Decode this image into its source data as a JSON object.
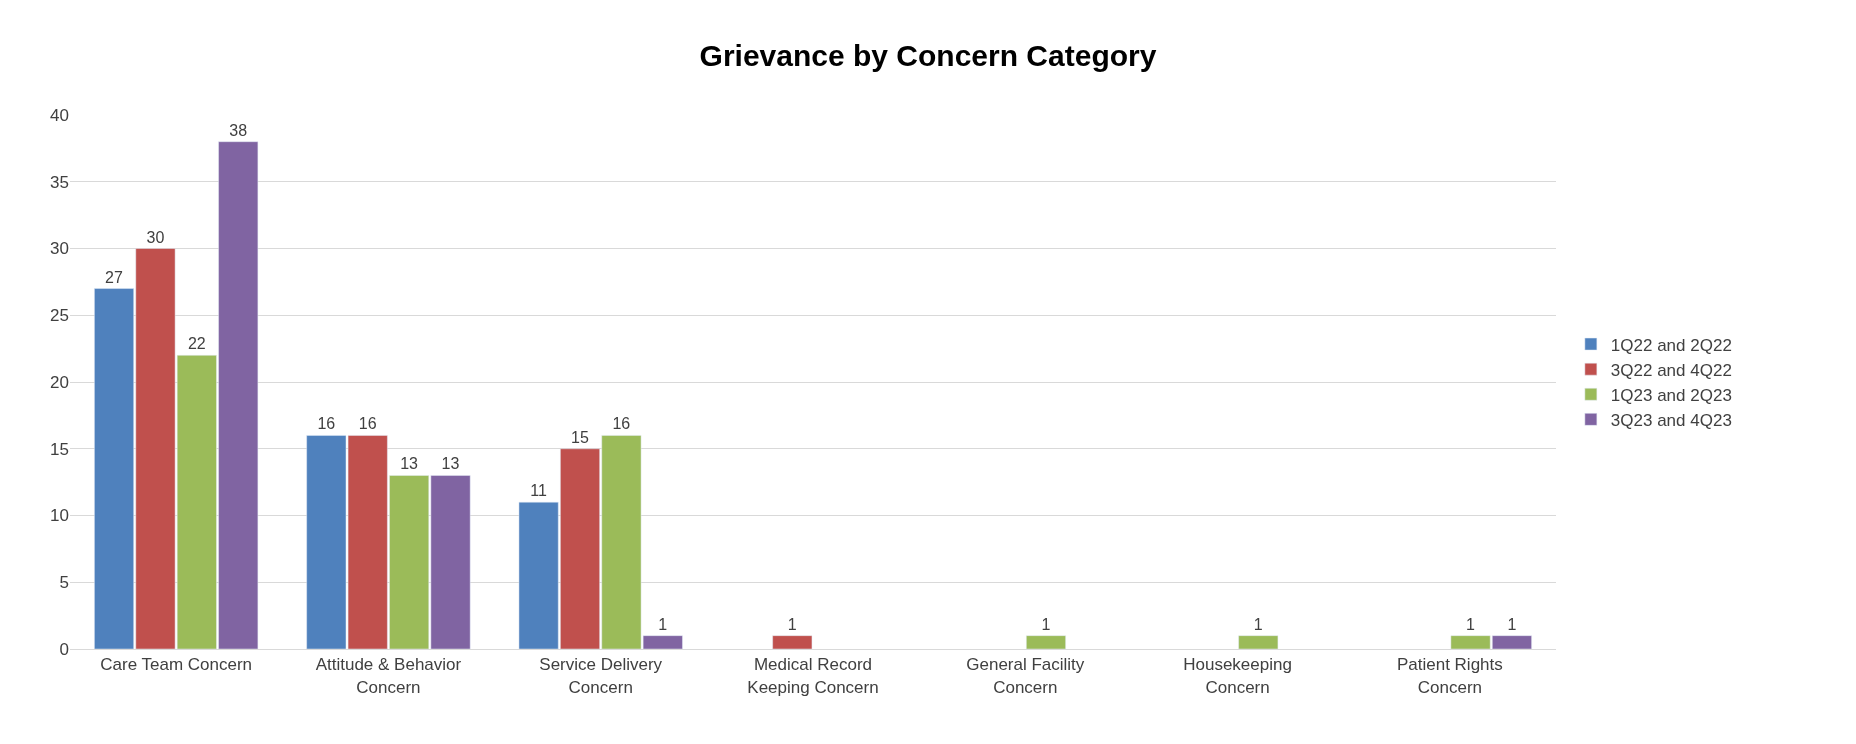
{
  "chart_data": {
    "type": "bar",
    "title": "Grievance by Concern Category",
    "categories": [
      "Care Team Concern",
      "Attitude & Behavior Concern",
      "Service Delivery Concern",
      "Medical Record Keeping Concern",
      "General Facility Concern",
      "Housekeeping Concern",
      "Patient Rights Concern"
    ],
    "series": [
      {
        "name": "1Q22 and 2Q22",
        "color": "#4f81bd",
        "values": [
          27,
          16,
          11,
          null,
          null,
          null,
          null
        ]
      },
      {
        "name": "3Q22 and 4Q22",
        "color": "#c0504d",
        "values": [
          30,
          16,
          15,
          1,
          null,
          null,
          null
        ]
      },
      {
        "name": "1Q23 and 2Q23",
        "color": "#9bbb59",
        "values": [
          22,
          13,
          16,
          null,
          1,
          1,
          1
        ]
      },
      {
        "name": "3Q23 and 4Q23",
        "color": "#8064a2",
        "values": [
          38,
          13,
          1,
          null,
          null,
          null,
          1
        ]
      }
    ],
    "ylim": [
      0,
      40
    ],
    "yticks": [
      0,
      5,
      10,
      15,
      20,
      25,
      30,
      35,
      40
    ],
    "grid": "y",
    "legend": "right",
    "data_labels": true
  }
}
